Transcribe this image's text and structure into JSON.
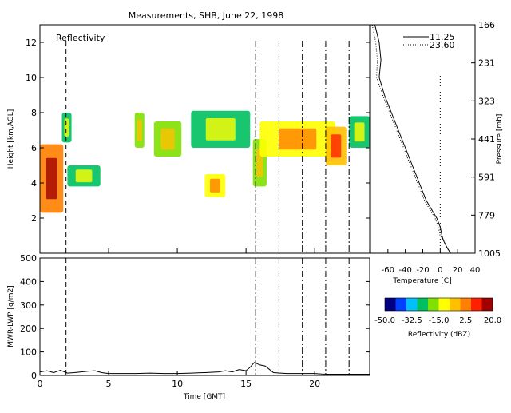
{
  "title": "Measurements, SHB, June 22, 1998",
  "colors": {
    "axis": "#000000",
    "background": "#ffffff"
  },
  "chart_data": [
    {
      "id": "reflectivity",
      "type": "heatmap",
      "label": "Reflectivity",
      "ylabel": "Height [km,AGL]",
      "xlim": [
        0,
        24
      ],
      "ylim": [
        0,
        13
      ],
      "xticks": [
        0,
        5,
        10,
        15,
        20
      ],
      "yticks": [
        2,
        4,
        6,
        8,
        10,
        12
      ],
      "grid": false,
      "vertical_markers": [
        1.9,
        15.7,
        17.4,
        19.1,
        20.8,
        22.5
      ],
      "echoes": [
        {
          "x0": 0.0,
          "x1": 1.7,
          "y0": 2.3,
          "y1": 6.2,
          "dbz": 5
        },
        {
          "x0": 2.0,
          "x1": 4.4,
          "y0": 3.8,
          "y1": 5.0,
          "dbz": -25
        },
        {
          "x0": 1.6,
          "x1": 2.3,
          "y0": 6.3,
          "y1": 8.0,
          "dbz": -25
        },
        {
          "x0": 6.9,
          "x1": 7.6,
          "y0": 6.0,
          "y1": 8.0,
          "dbz": -20
        },
        {
          "x0": 8.3,
          "x1": 10.3,
          "y0": 5.5,
          "y1": 7.5,
          "dbz": -20
        },
        {
          "x0": 11.0,
          "x1": 15.3,
          "y0": 6.0,
          "y1": 8.1,
          "dbz": -25
        },
        {
          "x0": 12.0,
          "x1": 13.5,
          "y0": 3.2,
          "y1": 4.5,
          "dbz": -15
        },
        {
          "x0": 15.5,
          "x1": 16.5,
          "y0": 3.8,
          "y1": 6.5,
          "dbz": -20
        },
        {
          "x0": 16.0,
          "x1": 21.5,
          "y0": 5.5,
          "y1": 7.5,
          "dbz": -15
        },
        {
          "x0": 20.8,
          "x1": 22.3,
          "y0": 5.0,
          "y1": 7.2,
          "dbz": -5
        },
        {
          "x0": 22.5,
          "x1": 24.0,
          "y0": 6.0,
          "y1": 7.8,
          "dbz": -25
        }
      ]
    },
    {
      "id": "lwp",
      "type": "line",
      "ylabel": "MWR-LWP [g/m2]",
      "xlabel": "Time [GMT]",
      "xlim": [
        0,
        24
      ],
      "ylim": [
        0,
        500
      ],
      "xticks": [
        0,
        5,
        10,
        15,
        20
      ],
      "yticks": [
        0,
        100,
        200,
        300,
        400,
        500
      ],
      "vertical_markers": [
        1.9,
        15.7,
        17.4,
        19.1,
        20.8,
        22.5
      ],
      "x": [
        0,
        0.5,
        1,
        1.5,
        2,
        2.5,
        3,
        3.5,
        4,
        4.5,
        5,
        6,
        7,
        8,
        9,
        10,
        11,
        12,
        13,
        13.5,
        14,
        14.5,
        15,
        15.3,
        15.6,
        16,
        16.4,
        17,
        17.5,
        18,
        19,
        20,
        20.5,
        21,
        22,
        23,
        24
      ],
      "y": [
        15,
        20,
        12,
        22,
        10,
        12,
        15,
        18,
        20,
        12,
        8,
        8,
        8,
        10,
        8,
        8,
        10,
        12,
        15,
        20,
        15,
        25,
        20,
        35,
        55,
        45,
        40,
        12,
        10,
        8,
        8,
        8,
        6,
        5,
        5,
        5,
        5
      ]
    },
    {
      "id": "sounding",
      "type": "line",
      "xlabel": "Temperature [C]",
      "ylabel": "Pressure [mb]",
      "xlim": [
        -80,
        40
      ],
      "ylim": [
        0,
        13
      ],
      "xticks": [
        -60,
        -40,
        -20,
        0,
        20,
        40
      ],
      "right_tick_labels": [
        "166",
        "231",
        "323",
        "441",
        "591",
        "779",
        "1005"
      ],
      "zero_line": 0,
      "series": [
        {
          "name": "11.25",
          "style": "solid",
          "x": [
            -75,
            -70,
            -68,
            -70,
            -64,
            -56,
            -48,
            -40,
            -32,
            -24,
            -16,
            -10,
            -4,
            0,
            2,
            4,
            8,
            12
          ],
          "y": [
            13,
            12,
            11,
            10,
            9,
            8,
            7,
            6,
            5,
            4,
            3,
            2.5,
            2,
            1.5,
            1,
            0.7,
            0.3,
            0
          ]
        },
        {
          "name": "23.60",
          "style": "dotted",
          "x": [
            -78,
            -74,
            -72,
            -73,
            -66,
            -58,
            -50,
            -42,
            -34,
            -26,
            -18,
            -12,
            -6,
            -2,
            0,
            4,
            8,
            12
          ],
          "y": [
            13,
            12,
            11,
            10,
            9,
            8,
            7,
            6,
            5,
            4,
            3,
            2.5,
            2,
            1.5,
            1,
            0.7,
            0.3,
            0
          ]
        }
      ]
    },
    {
      "id": "colorbar",
      "type": "colorbar",
      "label": "Reflectivity (dBZ)",
      "range": [
        -50,
        20
      ],
      "tick_labels": [
        "-50.0",
        "-32.5",
        "-15.0",
        "2.5",
        "20.0"
      ],
      "colors": [
        "#000080",
        "#0040ff",
        "#00c0ff",
        "#00c060",
        "#80e000",
        "#ffff00",
        "#ffc000",
        "#ff8000",
        "#ff2000",
        "#a00000"
      ]
    }
  ]
}
